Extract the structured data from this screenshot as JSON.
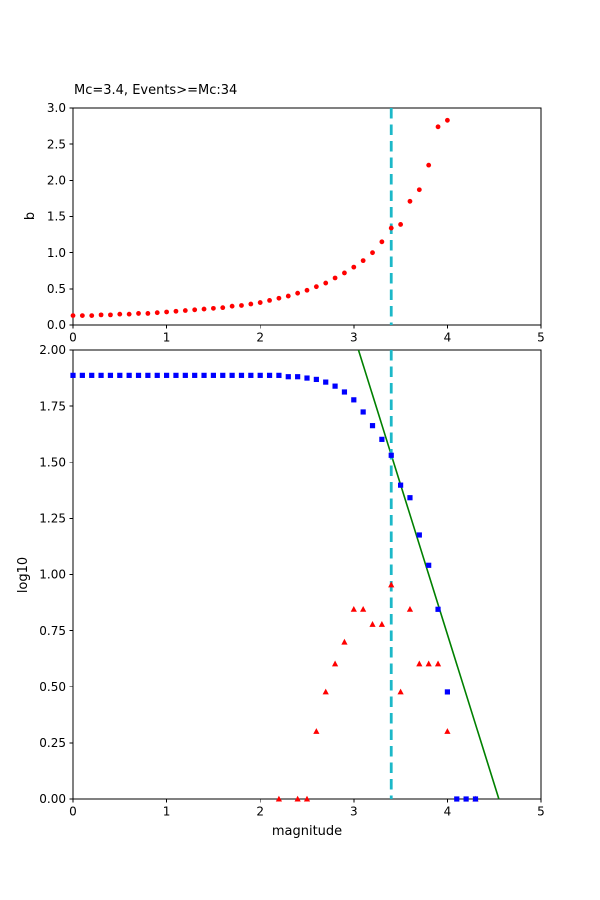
{
  "figure": {
    "background": "#ffffff",
    "colors": {
      "red": "#ff0000",
      "blue": "#0000ff",
      "green": "#008000",
      "cyan": "#1cb8c8",
      "axis": "#000000"
    }
  },
  "chart_data": [
    {
      "type": "scatter",
      "name": "b-value-vs-cutoff-plot",
      "title": "Mc=3.4, Events>=Mc:34",
      "xlabel": "",
      "ylabel": "b",
      "xlim": [
        0,
        5
      ],
      "ylim": [
        0.0,
        3.0
      ],
      "x_ticks": [
        "0",
        "1",
        "2",
        "3",
        "4",
        "5"
      ],
      "y_ticks": [
        "0.0",
        "0.5",
        "1.0",
        "1.5",
        "2.0",
        "2.5",
        "3.0"
      ],
      "grid": false,
      "legend": "none",
      "vline": {
        "x": 3.4,
        "color": "#1cb8c8",
        "style": "dashed"
      },
      "series": [
        {
          "name": "b_value_vs_cutoff_magnitude",
          "marker": "circle",
          "color": "#ff0000",
          "x": [
            0.0,
            0.1,
            0.2,
            0.3,
            0.4,
            0.5,
            0.6,
            0.7,
            0.8,
            0.9,
            1.0,
            1.1,
            1.2,
            1.3,
            1.4,
            1.5,
            1.6,
            1.7,
            1.8,
            1.9,
            2.0,
            2.1,
            2.2,
            2.3,
            2.4,
            2.5,
            2.6,
            2.7,
            2.8,
            2.9,
            3.0,
            3.1,
            3.2,
            3.3,
            3.4,
            3.5,
            3.6,
            3.7,
            3.8,
            3.9,
            4.0
          ],
          "y": [
            0.13,
            0.13,
            0.13,
            0.14,
            0.14,
            0.15,
            0.15,
            0.16,
            0.16,
            0.17,
            0.18,
            0.19,
            0.2,
            0.21,
            0.22,
            0.23,
            0.24,
            0.26,
            0.27,
            0.29,
            0.31,
            0.34,
            0.37,
            0.4,
            0.44,
            0.48,
            0.53,
            0.58,
            0.65,
            0.72,
            0.8,
            0.89,
            1.0,
            1.15,
            1.34,
            1.39,
            1.71,
            1.87,
            2.21,
            2.74,
            2.83
          ]
        }
      ]
    },
    {
      "type": "scatter",
      "name": "frequency-magnitude-plot",
      "title": "",
      "xlabel": "magnitude",
      "ylabel": "log10",
      "xlim": [
        0,
        5
      ],
      "ylim": [
        0.0,
        2.0
      ],
      "x_ticks": [
        "0",
        "1",
        "2",
        "3",
        "4",
        "5"
      ],
      "y_ticks": [
        "0.00",
        "0.25",
        "0.50",
        "0.75",
        "1.00",
        "1.25",
        "1.50",
        "1.75",
        "2.00"
      ],
      "grid": false,
      "legend": "none",
      "vline": {
        "x": 3.4,
        "color": "#1cb8c8",
        "style": "dashed"
      },
      "fit_line": {
        "name": "gutenberg_richter_fit",
        "color": "#008000",
        "x": [
          3.05,
          4.55
        ],
        "y": [
          2.0,
          0.0
        ]
      },
      "series": [
        {
          "name": "noncumulative_log10_counts",
          "marker": "triangle",
          "color": "#ff0000",
          "x": [
            2.2,
            2.4,
            2.5,
            2.6,
            2.7,
            2.8,
            2.9,
            3.0,
            3.1,
            3.2,
            3.3,
            3.4,
            3.5,
            3.6,
            3.7,
            3.8,
            3.9,
            4.0,
            4.3
          ],
          "y": [
            0.0,
            0.0,
            0.0,
            0.301,
            0.477,
            0.602,
            0.699,
            0.845,
            0.845,
            0.778,
            0.778,
            0.954,
            0.477,
            0.845,
            0.602,
            0.602,
            0.602,
            0.301,
            0.0
          ]
        },
        {
          "name": "cumulative_log10_counts",
          "marker": "square",
          "color": "#0000ff",
          "x": [
            0.0,
            0.1,
            0.2,
            0.3,
            0.4,
            0.5,
            0.6,
            0.7,
            0.8,
            0.9,
            1.0,
            1.1,
            1.2,
            1.3,
            1.4,
            1.5,
            1.6,
            1.7,
            1.8,
            1.9,
            2.0,
            2.1,
            2.2,
            2.3,
            2.4,
            2.5,
            2.6,
            2.7,
            2.8,
            2.9,
            3.0,
            3.1,
            3.2,
            3.3,
            3.4,
            3.5,
            3.6,
            3.7,
            3.8,
            3.9,
            4.0,
            4.1,
            4.2,
            4.3
          ],
          "y": [
            1.887,
            1.887,
            1.887,
            1.887,
            1.887,
            1.887,
            1.887,
            1.887,
            1.887,
            1.887,
            1.887,
            1.887,
            1.887,
            1.887,
            1.887,
            1.887,
            1.887,
            1.887,
            1.887,
            1.887,
            1.887,
            1.887,
            1.887,
            1.881,
            1.881,
            1.875,
            1.869,
            1.857,
            1.839,
            1.813,
            1.778,
            1.724,
            1.663,
            1.602,
            1.531,
            1.398,
            1.342,
            1.176,
            1.041,
            0.845,
            0.477,
            0.0,
            0.0,
            0.0
          ]
        }
      ]
    }
  ]
}
